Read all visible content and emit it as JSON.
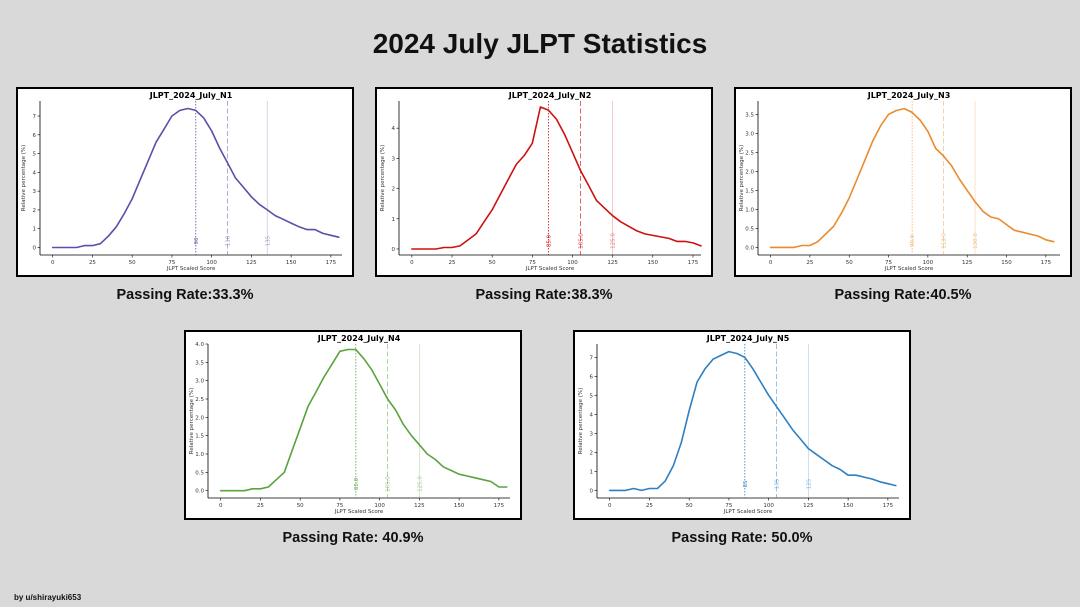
{
  "page": {
    "title": "2024 July JLPT Statistics",
    "credit": "by u/shirayuki653"
  },
  "panels": [
    {
      "id": "n1",
      "caption": "Passing Rate:33.3%"
    },
    {
      "id": "n2",
      "caption": "Passing Rate:38.3%"
    },
    {
      "id": "n3",
      "caption": "Passing Rate:40.5%"
    },
    {
      "id": "n4",
      "caption": "Passing Rate: 40.9%"
    },
    {
      "id": "n5",
      "caption": "Passing Rate: 50.0%"
    }
  ],
  "chart_data": [
    {
      "type": "line",
      "title": "JLPT_2024_July_N1",
      "xlabel": "JLPT Scaled Score",
      "ylabel": "Relative percentage (%)",
      "color": "#5b4fa8",
      "xlim": [
        -8,
        182
      ],
      "ylim": [
        -0.4,
        7.8
      ],
      "xticks": [
        0,
        25,
        50,
        75,
        100,
        125,
        150,
        175
      ],
      "yticks": [
        0,
        1,
        2,
        3,
        4,
        5,
        6,
        7
      ],
      "ytick_labels": [
        "0",
        "1",
        "2",
        "3",
        "4",
        "5",
        "6",
        "7"
      ],
      "x": [
        0,
        5,
        10,
        15,
        20,
        25,
        30,
        35,
        40,
        45,
        50,
        55,
        60,
        65,
        70,
        75,
        80,
        85,
        90,
        95,
        100,
        105,
        110,
        115,
        120,
        125,
        130,
        135,
        140,
        145,
        150,
        155,
        160,
        165,
        170,
        175,
        180
      ],
      "y": [
        0,
        0,
        0,
        0,
        0.1,
        0.1,
        0.2,
        0.6,
        1.1,
        1.8,
        2.6,
        3.6,
        4.6,
        5.6,
        6.3,
        7.0,
        7.3,
        7.4,
        7.3,
        6.9,
        6.2,
        5.3,
        4.5,
        3.7,
        3.2,
        2.7,
        2.3,
        2.0,
        1.7,
        1.5,
        1.3,
        1.1,
        0.95,
        0.95,
        0.75,
        0.65,
        0.55
      ],
      "markers": [
        {
          "x": 90,
          "label": "90",
          "style": "dotted",
          "alpha": 1.0
        },
        {
          "x": 110,
          "label": "110",
          "style": "dashed",
          "alpha": 0.6
        },
        {
          "x": 135,
          "label": "135",
          "style": "solid",
          "alpha": 0.3
        }
      ]
    },
    {
      "type": "line",
      "title": "JLPT_2024_July_N2",
      "xlabel": "JLPT Scaled Score",
      "ylabel": "Relative percentage (%)",
      "color": "#cc1111",
      "xlim": [
        -8,
        180
      ],
      "ylim": [
        -0.2,
        4.9
      ],
      "xticks": [
        0,
        25,
        50,
        75,
        100,
        125,
        150,
        175
      ],
      "yticks": [
        0,
        1,
        2,
        3,
        4
      ],
      "ytick_labels": [
        "0",
        "1",
        "2",
        "3",
        "4"
      ],
      "x": [
        0,
        5,
        10,
        15,
        20,
        25,
        30,
        35,
        40,
        45,
        50,
        55,
        60,
        65,
        70,
        75,
        80,
        85,
        90,
        95,
        100,
        105,
        110,
        115,
        120,
        125,
        130,
        135,
        140,
        145,
        150,
        155,
        160,
        165,
        170,
        175,
        180
      ],
      "y": [
        0,
        0,
        0,
        0,
        0.05,
        0.05,
        0.1,
        0.3,
        0.5,
        0.9,
        1.3,
        1.8,
        2.3,
        2.8,
        3.1,
        3.5,
        4.7,
        4.6,
        4.3,
        3.8,
        3.2,
        2.6,
        2.1,
        1.6,
        1.35,
        1.1,
        0.9,
        0.75,
        0.6,
        0.5,
        0.45,
        0.4,
        0.35,
        0.25,
        0.25,
        0.2,
        0.1
      ],
      "markers": [
        {
          "x": 85,
          "label": "85.0",
          "style": "dotted",
          "alpha": 1.0
        },
        {
          "x": 105,
          "label": "105.0",
          "style": "dashed",
          "alpha": 0.8
        },
        {
          "x": 125,
          "label": "125.0",
          "style": "solid",
          "alpha": 0.3
        }
      ]
    },
    {
      "type": "line",
      "title": "JLPT_2024_July_N3",
      "xlabel": "JLPT Scaled Score",
      "ylabel": "Relative percentage (%)",
      "color": "#ea8b2c",
      "xlim": [
        -8,
        184
      ],
      "ylim": [
        -0.2,
        3.85
      ],
      "xticks": [
        0,
        25,
        50,
        75,
        100,
        125,
        150,
        175
      ],
      "yticks": [
        0,
        0.5,
        1.0,
        1.5,
        2.0,
        2.5,
        3.0,
        3.5
      ],
      "ytick_labels": [
        "0.0",
        "0.5",
        "1.0",
        "1.5",
        "2.0",
        "2.5",
        "3.0",
        "3.5"
      ],
      "x": [
        0,
        5,
        10,
        15,
        20,
        25,
        30,
        35,
        40,
        45,
        50,
        55,
        60,
        65,
        70,
        75,
        80,
        85,
        90,
        95,
        100,
        105,
        110,
        115,
        120,
        125,
        130,
        135,
        140,
        145,
        150,
        155,
        160,
        165,
        170,
        175,
        180
      ],
      "y": [
        0,
        0,
        0,
        0,
        0.05,
        0.05,
        0.15,
        0.35,
        0.55,
        0.9,
        1.3,
        1.8,
        2.3,
        2.8,
        3.2,
        3.5,
        3.6,
        3.65,
        3.55,
        3.35,
        3.05,
        2.6,
        2.4,
        2.15,
        1.8,
        1.5,
        1.2,
        0.95,
        0.8,
        0.75,
        0.6,
        0.45,
        0.4,
        0.35,
        0.3,
        0.2,
        0.15
      ],
      "markers": [
        {
          "x": 90,
          "label": "90.0",
          "style": "dotted",
          "alpha": 0.7
        },
        {
          "x": 110,
          "label": "110.0",
          "style": "dashed",
          "alpha": 0.5
        },
        {
          "x": 130,
          "label": "130.0",
          "style": "solid",
          "alpha": 0.3
        }
      ]
    },
    {
      "type": "line",
      "title": "JLPT_2024_July_N4",
      "xlabel": "JLPT Scaled Score",
      "ylabel": "Relative percentage (%)",
      "color": "#5aa33e",
      "xlim": [
        -8,
        182
      ],
      "ylim": [
        -0.2,
        4.0
      ],
      "xticks": [
        0,
        25,
        50,
        75,
        100,
        125,
        150,
        175
      ],
      "yticks": [
        0,
        0.5,
        1.0,
        1.5,
        2.0,
        2.5,
        3.0,
        3.5,
        4.0
      ],
      "ytick_labels": [
        "0.0",
        "0.5",
        "1.0",
        "1.5",
        "2.0",
        "2.5",
        "3.0",
        "3.5",
        "4.0"
      ],
      "x": [
        0,
        5,
        10,
        15,
        20,
        25,
        30,
        35,
        40,
        45,
        50,
        55,
        60,
        65,
        70,
        75,
        80,
        85,
        90,
        95,
        100,
        105,
        110,
        115,
        120,
        125,
        130,
        135,
        140,
        145,
        150,
        155,
        160,
        165,
        170,
        175,
        180
      ],
      "y": [
        0,
        0,
        0,
        0,
        0.05,
        0.05,
        0.1,
        0.3,
        0.5,
        1.1,
        1.7,
        2.3,
        2.7,
        3.1,
        3.45,
        3.8,
        3.85,
        3.85,
        3.6,
        3.3,
        2.9,
        2.5,
        2.2,
        1.8,
        1.5,
        1.25,
        1.0,
        0.85,
        0.65,
        0.55,
        0.45,
        0.4,
        0.35,
        0.3,
        0.25,
        0.1,
        0.1
      ],
      "markers": [
        {
          "x": 85,
          "label": "85.0",
          "style": "dotted",
          "alpha": 1.0
        },
        {
          "x": 105,
          "label": "105.0",
          "style": "dashed",
          "alpha": 0.6
        },
        {
          "x": 125,
          "label": "125.0",
          "style": "solid",
          "alpha": 0.3
        }
      ]
    },
    {
      "type": "line",
      "title": "JLPT_2024_July_N5",
      "xlabel": "JLPT Scaled Score",
      "ylabel": "Relative percentage (%)",
      "color": "#2f7fc1",
      "xlim": [
        -8,
        182
      ],
      "ylim": [
        -0.4,
        7.7
      ],
      "xticks": [
        0,
        25,
        50,
        75,
        100,
        125,
        150,
        175
      ],
      "yticks": [
        0,
        1,
        2,
        3,
        4,
        5,
        6,
        7
      ],
      "ytick_labels": [
        "0",
        "1",
        "2",
        "3",
        "4",
        "5",
        "6",
        "7"
      ],
      "x": [
        0,
        5,
        10,
        15,
        20,
        25,
        30,
        35,
        40,
        45,
        50,
        55,
        60,
        65,
        70,
        75,
        80,
        85,
        90,
        95,
        100,
        105,
        110,
        115,
        120,
        125,
        130,
        135,
        140,
        145,
        150,
        155,
        160,
        165,
        170,
        175,
        180
      ],
      "y": [
        0,
        0,
        0,
        0.1,
        0,
        0.1,
        0.1,
        0.5,
        1.3,
        2.5,
        4.2,
        5.7,
        6.4,
        6.9,
        7.1,
        7.3,
        7.2,
        7.0,
        6.4,
        5.7,
        5.0,
        4.4,
        3.8,
        3.2,
        2.7,
        2.2,
        1.9,
        1.6,
        1.3,
        1.1,
        0.8,
        0.8,
        0.7,
        0.6,
        0.45,
        0.35,
        0.25
      ],
      "markers": [
        {
          "x": 85,
          "label": "85",
          "style": "dotted",
          "alpha": 1.0
        },
        {
          "x": 105,
          "label": "105",
          "style": "dashed",
          "alpha": 0.6
        },
        {
          "x": 125,
          "label": "125",
          "style": "solid",
          "alpha": 0.3
        }
      ]
    }
  ]
}
